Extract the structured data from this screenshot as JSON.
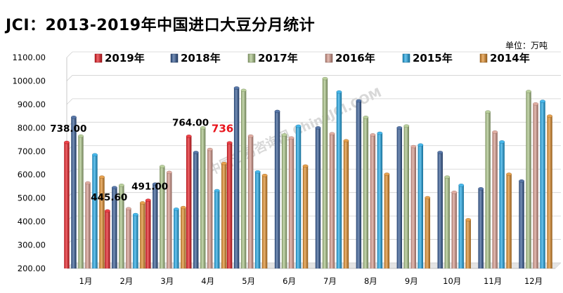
{
  "chart_title": "JCI：2013-2019年中国进口大豆分月统计",
  "unit_label": "单位：万吨",
  "watermark": "中国汇易咨询网  ChinaJCI.COM",
  "chart_data": {
    "type": "bar",
    "title": "JCI：2013-2019年中国进口大豆分月统计",
    "categories": [
      "1月",
      "2月",
      "3月",
      "4月",
      "5月",
      "6月",
      "7月",
      "8月",
      "9月",
      "10月",
      "11月",
      "12月"
    ],
    "ylim": [
      200,
      1100
    ],
    "yticks": [
      "200.00",
      "300.00",
      "400.00",
      "500.00",
      "600.00",
      "700.00",
      "800.00",
      "900.00",
      "1000.00",
      "1100.00"
    ],
    "grid": true,
    "legend_position": "top",
    "series": [
      {
        "name": "2019年",
        "color": "#e8141c",
        "values": [
          738,
          445.6,
          491,
          764,
          736,
          null,
          null,
          null,
          null,
          null,
          null,
          null
        ]
      },
      {
        "name": "2018年",
        "color": "#2e5592",
        "values": [
          845,
          545,
          560,
          695,
          970,
          870,
          800,
          915,
          800,
          695,
          540,
          573
        ]
      },
      {
        "name": "2017年",
        "color": "#a9c484",
        "values": [
          765,
          555,
          635,
          800,
          960,
          770,
          1010,
          845,
          808,
          590,
          868,
          955
        ]
      },
      {
        "name": "2016年",
        "color": "#d99a8c",
        "values": [
          565,
          455,
          610,
          708,
          765,
          757,
          775,
          770,
          720,
          525,
          782,
          902
        ]
      },
      {
        "name": "2015年",
        "color": "#1aa6e6",
        "values": [
          685,
          430,
          453,
          532,
          612,
          807,
          953,
          777,
          727,
          555,
          740,
          913
        ]
      },
      {
        "name": "2014年",
        "color": "#e08a24",
        "values": [
          590,
          480,
          460,
          648,
          597,
          637,
          745,
          602,
          502,
          408,
          602,
          850
        ]
      }
    ],
    "data_labels": [
      {
        "text": "738.00",
        "month": 0,
        "value": 738,
        "color": "#000000"
      },
      {
        "text": "445.60",
        "month": 1,
        "value": 445.6,
        "color": "#000000"
      },
      {
        "text": "491.00",
        "month": 2,
        "value": 491,
        "color": "#000000"
      },
      {
        "text": "764.00",
        "month": 3,
        "value": 764,
        "color": "#000000"
      },
      {
        "text": "736",
        "month": 4,
        "value": 736,
        "color": "#e8141c"
      }
    ]
  }
}
